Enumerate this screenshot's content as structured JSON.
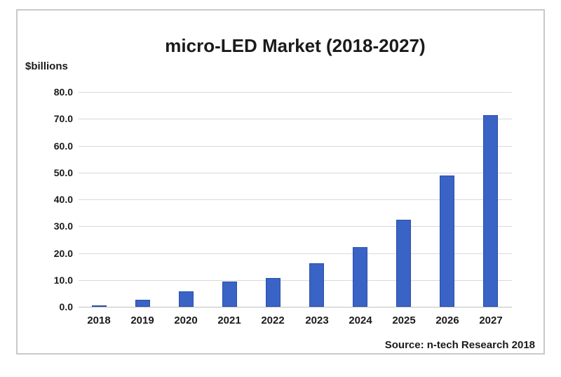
{
  "chart_data": {
    "type": "bar",
    "title": "micro-LED Market (2018-2027)",
    "ylabel": "$billions",
    "xlabel": "",
    "source": "Source: n-tech Research 2018",
    "categories": [
      "2018",
      "2019",
      "2020",
      "2021",
      "2022",
      "2023",
      "2024",
      "2025",
      "2026",
      "2027"
    ],
    "values": [
      0.6,
      2.7,
      5.8,
      9.5,
      10.7,
      16.3,
      22.3,
      32.5,
      48.8,
      71.5
    ],
    "ylim": [
      0,
      80
    ],
    "ytick_step": 10,
    "ytick_labels": [
      "80.0",
      "70.0",
      "60.0",
      "50.0",
      "40.0",
      "30.0",
      "20.0",
      "10.0",
      "0.0"
    ],
    "grid": true,
    "legend": false,
    "colors": {
      "bar_fill": "#3a63c6",
      "bar_border": "#2a4ea8",
      "gridline": "#d9d9d9",
      "baseline": "#c0c0c0",
      "frame_border": "#c9c9c9",
      "text": "#1a1a1a"
    }
  }
}
